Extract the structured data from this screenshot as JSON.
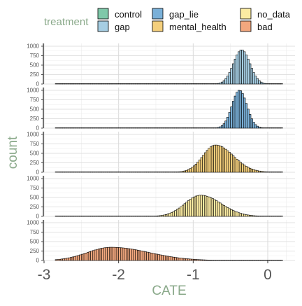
{
  "chart_data": {
    "type": "bar",
    "subtype": "faceted-histogram",
    "xlabel": "CATE",
    "ylabel": "count",
    "xlim": [
      -3,
      0.25
    ],
    "x_ticks": [
      -3,
      -2,
      -1,
      0
    ],
    "x_tick_labels": [
      "-3",
      "-2",
      "-1",
      "0"
    ],
    "ylim": [
      0,
      1000
    ],
    "y_ticks": [
      0,
      250,
      500,
      750,
      1000
    ],
    "y_tick_labels": [
      "0",
      "250",
      "500",
      "750",
      "1000"
    ],
    "grid": true,
    "legend": {
      "title": "treatment",
      "placement": "top",
      "entries": [
        {
          "label": "control",
          "color": "#7fc8a9"
        },
        {
          "label": "gap",
          "color": "#a6cee3"
        },
        {
          "label": "gap_lie",
          "color": "#7ab0d8"
        },
        {
          "label": "mental_health",
          "color": "#f4cf7c"
        },
        {
          "label": "no_data",
          "color": "#fbeba2"
        },
        {
          "label": "bad",
          "color": "#f2a77e"
        }
      ]
    },
    "series": [
      {
        "name": "gap",
        "color": "#a6cee3",
        "x_range": [
          -2.85,
          0.2
        ],
        "mean": -0.35,
        "sd": 0.11,
        "skew": 1.0,
        "peak": 900
      },
      {
        "name": "gap_lie",
        "color": "#7ab0d8",
        "x_range": [
          -2.85,
          0.2
        ],
        "mean": -0.38,
        "sd": 0.1,
        "skew": 1.0,
        "peak": 1000
      },
      {
        "name": "mental_health",
        "color": "#f4cf7c",
        "x_range": [
          -2.85,
          0.2
        ],
        "mean": -0.7,
        "sd": 0.2,
        "skew": 1.4,
        "peak": 720
      },
      {
        "name": "no_data",
        "color": "#fbeba2",
        "x_range": [
          -2.85,
          0.2
        ],
        "mean": -0.9,
        "sd": 0.24,
        "skew": 1.3,
        "peak": 560
      },
      {
        "name": "bad",
        "color": "#f2a77e",
        "x_range": [
          -2.85,
          0.2
        ],
        "mean": -2.1,
        "sd": 0.4,
        "skew": 1.6,
        "peak": 350
      }
    ]
  }
}
